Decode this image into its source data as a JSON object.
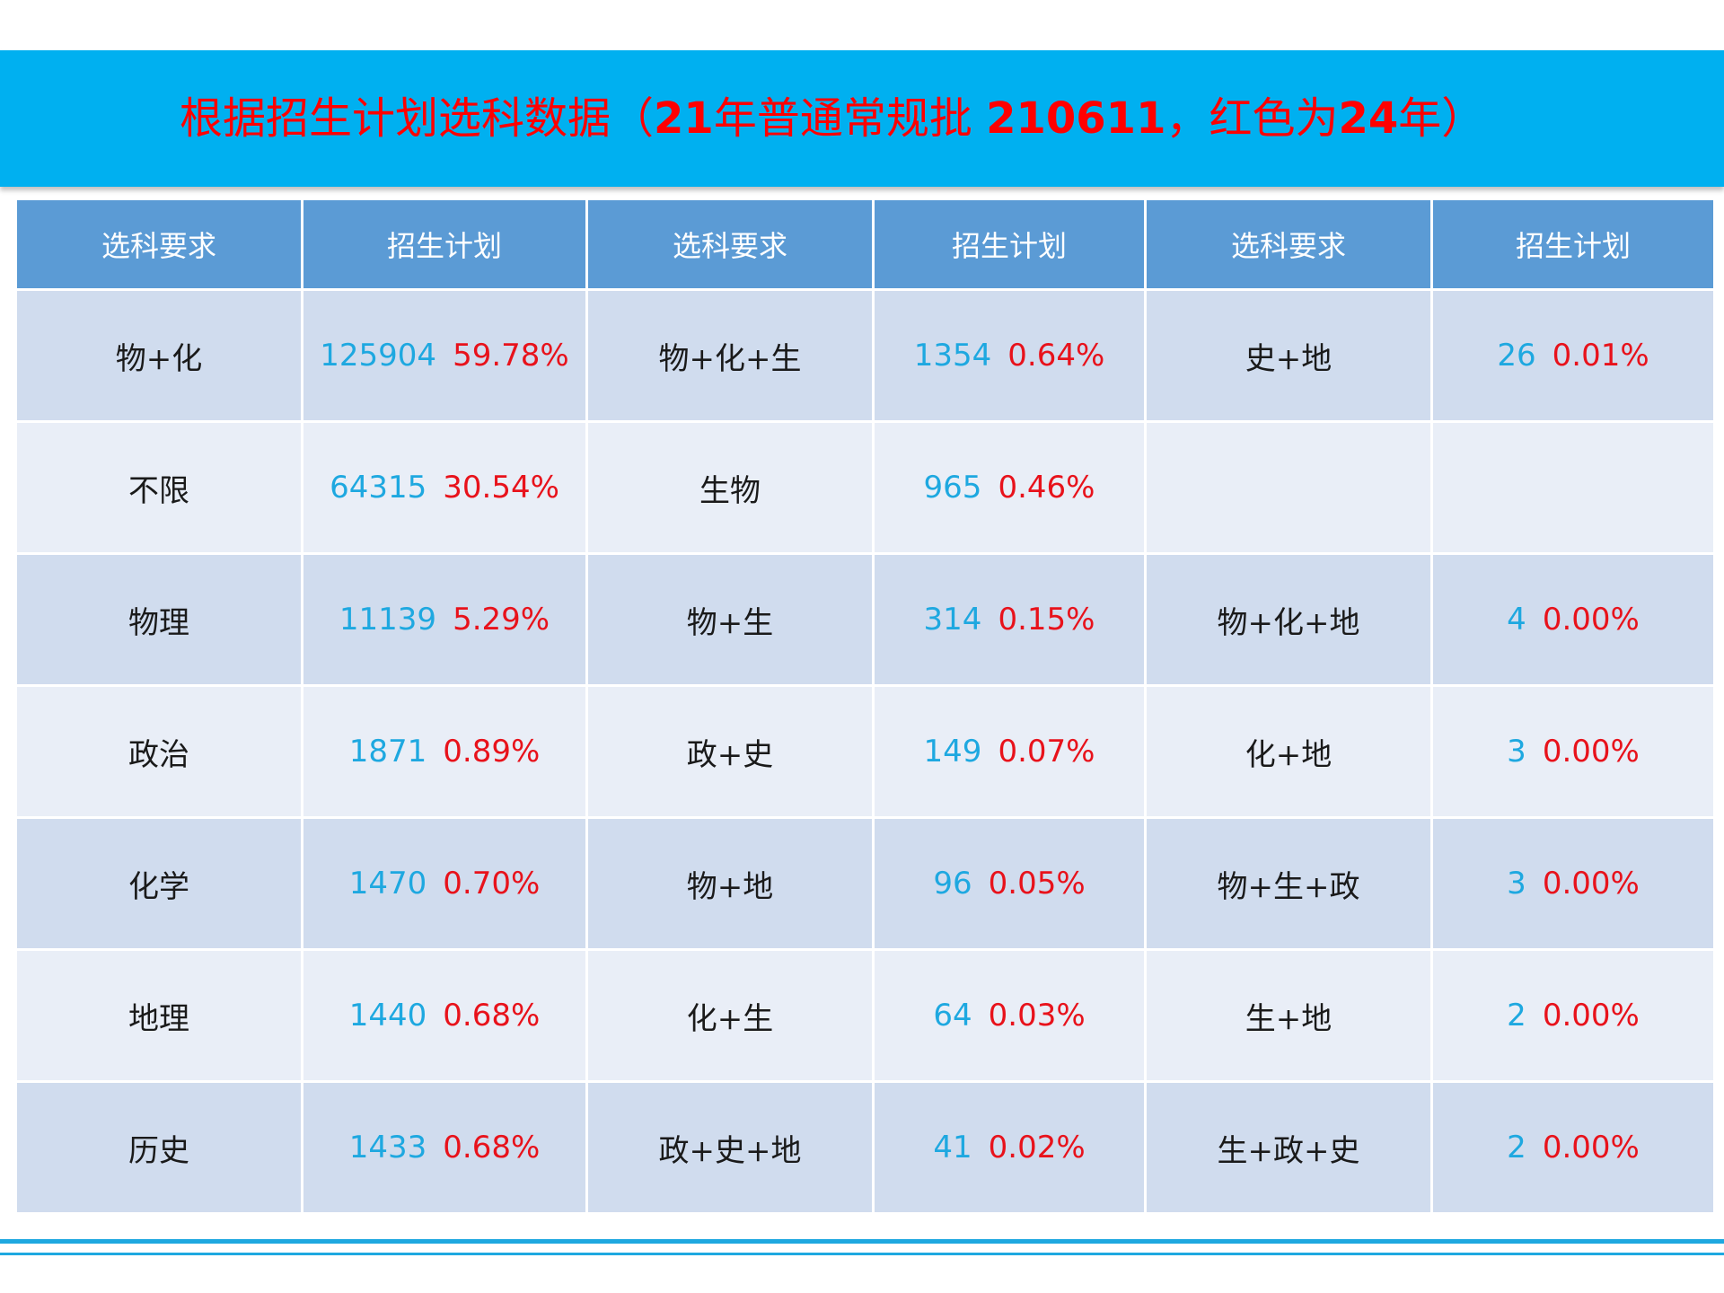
{
  "title": {
    "seg1": "根据招生计划选科数据（",
    "seg2": "21",
    "seg3": "年普通常规批 ",
    "seg4": "210611",
    "seg5": "，红色为",
    "seg6": "24",
    "seg7": "年）"
  },
  "headers": [
    "选科要求",
    "招生计划",
    "选科要求",
    "招生计划",
    "选科要求",
    "招生计划"
  ],
  "rows": [
    [
      {
        "req": "物+化",
        "num": "125904",
        "pct": "59.78%"
      },
      {
        "req": "物+化+生",
        "num": "1354",
        "pct": "0.64%"
      },
      {
        "req": "史+地",
        "num": "26",
        "pct": "0.01%"
      }
    ],
    [
      {
        "req": "不限",
        "num": "64315",
        "pct": "30.54%"
      },
      {
        "req": "生物",
        "num": "965",
        "pct": "0.46%"
      },
      {
        "req": "",
        "num": "",
        "pct": ""
      }
    ],
    [
      {
        "req": "物理",
        "num": "11139",
        "pct": "5.29%"
      },
      {
        "req": "物+生",
        "num": "314",
        "pct": "0.15%"
      },
      {
        "req": "物+化+地",
        "num": "4",
        "pct": "0.00%"
      }
    ],
    [
      {
        "req": "政治",
        "num": "1871",
        "pct": "0.89%"
      },
      {
        "req": "政+史",
        "num": "149",
        "pct": "0.07%"
      },
      {
        "req": "化+地",
        "num": "3",
        "pct": "0.00%"
      }
    ],
    [
      {
        "req": "化学",
        "num": "1470",
        "pct": "0.70%"
      },
      {
        "req": "物+地",
        "num": "96",
        "pct": "0.05%"
      },
      {
        "req": "物+生+政",
        "num": "3",
        "pct": "0.00%"
      }
    ],
    [
      {
        "req": "地理",
        "num": "1440",
        "pct": "0.68%"
      },
      {
        "req": "化+生",
        "num": "64",
        "pct": "0.03%"
      },
      {
        "req": "生+地",
        "num": "2",
        "pct": "0.00%"
      }
    ],
    [
      {
        "req": "历史",
        "num": "1433",
        "pct": "0.68%"
      },
      {
        "req": "政+史+地",
        "num": "41",
        "pct": "0.02%"
      },
      {
        "req": "生+政+史",
        "num": "2",
        "pct": "0.00%"
      }
    ]
  ]
}
